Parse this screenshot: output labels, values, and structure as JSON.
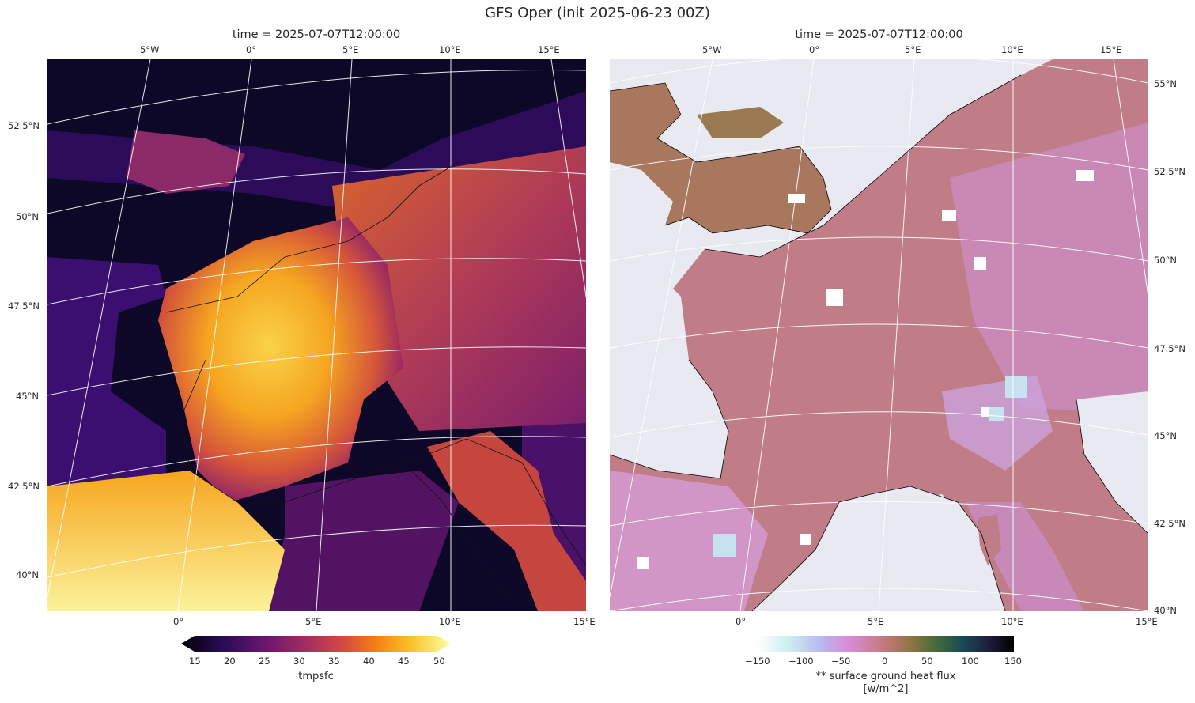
{
  "title": "GFS Oper (init 2025-06-23 00Z)",
  "panels": [
    {
      "id": "left",
      "title": "time = 2025-07-07T12:00:00",
      "top_lon_labels": [
        "5°W",
        "0°",
        "5°E",
        "10°E",
        "15°E"
      ],
      "bottom_lon_labels": [
        "0°",
        "5°E",
        "10°E",
        "15°E"
      ],
      "lat_labels": [
        "52.5°N",
        "50°N",
        "47.5°N",
        "45°N",
        "42.5°N",
        "40°N"
      ],
      "colorbar": {
        "colormap": "inferno",
        "ticks": [
          "15",
          "20",
          "25",
          "30",
          "35",
          "40",
          "45",
          "50"
        ],
        "label": "tmpsfc",
        "range": [
          15,
          50
        ],
        "extend": "both"
      }
    },
    {
      "id": "right",
      "title": "time = 2025-07-07T12:00:00",
      "top_lon_labels": [
        "5°W",
        "0°",
        "5°E",
        "10°E",
        "15°E"
      ],
      "bottom_lon_labels": [
        "0°",
        "5°E",
        "10°E",
        "15°E"
      ],
      "lat_labels": [
        "55°N",
        "52.5°N",
        "50°N",
        "47.5°N",
        "45°N",
        "42.5°N",
        "40°N"
      ],
      "colorbar": {
        "colormap": "cubehelix-diverging",
        "ticks": [
          "−150",
          "−100",
          "−50",
          "0",
          "50",
          "100",
          "150"
        ],
        "label": "** surface ground heat flux",
        "units": "[w/m^2]",
        "range": [
          -150,
          150
        ]
      }
    }
  ],
  "colors": {
    "ocean_right": "#e9e9f1",
    "land_right": "#c07d88",
    "inferno_low": "#0a0722",
    "inferno_high": "#fbfb9d"
  }
}
